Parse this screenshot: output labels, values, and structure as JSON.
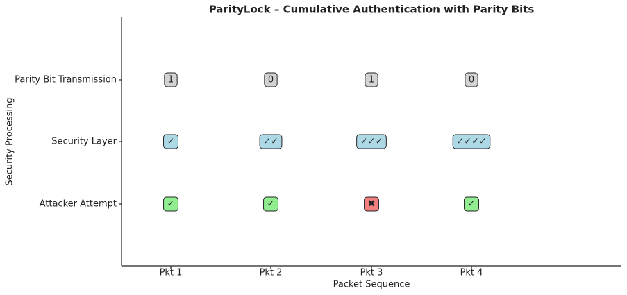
{
  "title": "ParityLock – Cumulative Authentication with Parity Bits",
  "x_axis": {
    "label": "Packet Sequence",
    "ticks": [
      "Pkt 1",
      "Pkt 2",
      "Pkt 3",
      "Pkt 4"
    ]
  },
  "y_axis": {
    "label": "Security Processing"
  },
  "rows": [
    {
      "label": "Parity Bit Transmission",
      "cells": [
        {
          "text": "1",
          "color": "#d3d3d3"
        },
        {
          "text": "0",
          "color": "#d3d3d3"
        },
        {
          "text": "1",
          "color": "#d3d3d3"
        },
        {
          "text": "0",
          "color": "#d3d3d3"
        }
      ]
    },
    {
      "label": "Security Layer",
      "cells": [
        {
          "text": "✓",
          "color": "#add8e6"
        },
        {
          "text": "✓✓",
          "color": "#add8e6"
        },
        {
          "text": "✓✓✓",
          "color": "#add8e6"
        },
        {
          "text": "✓✓✓✓",
          "color": "#add8e6"
        }
      ]
    },
    {
      "label": "Attacker Attempt",
      "cells": [
        {
          "text": "✓",
          "color": "#90ee90"
        },
        {
          "text": "✓",
          "color": "#90ee90"
        },
        {
          "text": "✖",
          "color": "#f08080"
        },
        {
          "text": "✓",
          "color": "#90ee90"
        }
      ]
    }
  ]
}
